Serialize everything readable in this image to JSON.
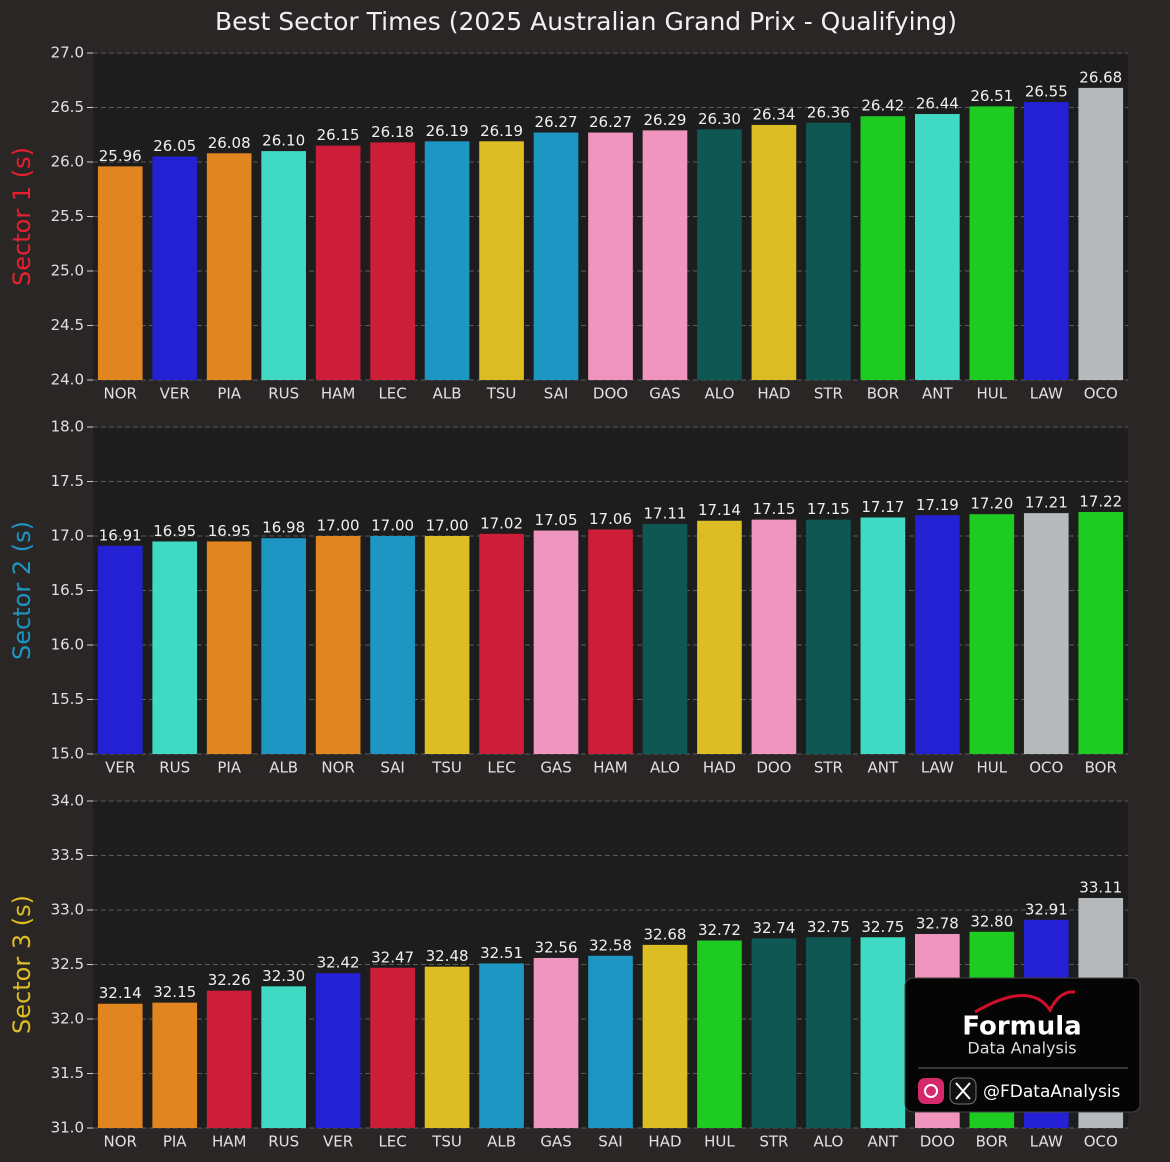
{
  "title": "Best Sector Times (2025 Australian Grand Prix - Qualifying)",
  "logo": {
    "brand": "Formula",
    "subtitle": "Data Analysis",
    "handle": "@FDataAnalysis"
  },
  "chart_data": [
    {
      "type": "bar",
      "ylabel": "Sector 1 (s)",
      "ylabel_color": "#e8202e",
      "grid": true,
      "categories": [
        "NOR",
        "VER",
        "PIA",
        "RUS",
        "HAM",
        "LEC",
        "ALB",
        "TSU",
        "SAI",
        "DOO",
        "GAS",
        "ALO",
        "HAD",
        "STR",
        "BOR",
        "ANT",
        "HUL",
        "LAW",
        "OCO"
      ],
      "values": [
        25.96,
        26.05,
        26.08,
        26.1,
        26.15,
        26.18,
        26.19,
        26.19,
        26.27,
        26.27,
        26.29,
        26.3,
        26.34,
        26.36,
        26.42,
        26.44,
        26.51,
        26.55,
        26.68
      ],
      "value_labels": [
        "25.96",
        "26.05",
        "26.08",
        "26.10",
        "26.15",
        "26.18",
        "26.19",
        "26.19",
        "26.27",
        "26.27",
        "26.29",
        "26.30",
        "26.34",
        "26.36",
        "26.42",
        "26.44",
        "26.51",
        "26.55",
        "26.68"
      ],
      "colors": [
        "#e08520",
        "#2420d4",
        "#e08520",
        "#40d9c4",
        "#cc1e38",
        "#cc1e38",
        "#1e96c3",
        "#dcbe24",
        "#1e96c3",
        "#f096be",
        "#f096be",
        "#0e5752",
        "#dcbe24",
        "#0e5752",
        "#1ecb20",
        "#40d9c4",
        "#1ecb20",
        "#2420d4",
        "#b6babd"
      ],
      "ylim": [
        24,
        27
      ],
      "yticks": [
        {
          "value": 24,
          "label": "24.0"
        },
        24.5,
        {
          "value": 25,
          "label": "25.0"
        },
        25.5,
        {
          "value": 26,
          "label": "26.0"
        },
        26.5,
        {
          "value": 27,
          "label": "27.0"
        }
      ]
    },
    {
      "type": "bar",
      "ylabel": "Sector 2 (s)",
      "ylabel_color": "#1e96c3",
      "grid": true,
      "categories": [
        "VER",
        "RUS",
        "PIA",
        "ALB",
        "NOR",
        "SAI",
        "TSU",
        "LEC",
        "GAS",
        "HAM",
        "ALO",
        "HAD",
        "DOO",
        "STR",
        "ANT",
        "LAW",
        "HUL",
        "OCO",
        "BOR"
      ],
      "values": [
        16.91,
        16.95,
        16.95,
        16.98,
        17,
        17,
        17,
        17.02,
        17.05,
        17.06,
        17.11,
        17.14,
        17.15,
        17.15,
        17.17,
        17.19,
        17.2,
        17.21,
        17.22
      ],
      "value_labels": [
        "16.91",
        "16.95",
        "16.95",
        "16.98",
        "17.00",
        "17.00",
        "17.00",
        "17.02",
        "17.05",
        "17.06",
        "17.11",
        "17.14",
        "17.15",
        "17.15",
        "17.17",
        "17.19",
        "17.20",
        "17.21",
        "17.22"
      ],
      "colors": [
        "#2420d4",
        "#40d9c4",
        "#e08520",
        "#1e96c3",
        "#e08520",
        "#1e96c3",
        "#dcbe24",
        "#cc1e38",
        "#f096be",
        "#cc1e38",
        "#0e5752",
        "#dcbe24",
        "#f096be",
        "#0e5752",
        "#40d9c4",
        "#2420d4",
        "#1ecb20",
        "#b6babd",
        "#1ecb20"
      ],
      "ylim": [
        15,
        18
      ],
      "yticks": [
        {
          "value": 15,
          "label": "15.0"
        },
        15.5,
        {
          "value": 16,
          "label": "16.0"
        },
        16.5,
        {
          "value": 17,
          "label": "17.0"
        },
        17.5,
        {
          "value": 18,
          "label": "18.0"
        }
      ]
    },
    {
      "type": "bar",
      "ylabel": "Sector 3 (s)",
      "ylabel_color": "#dcbe24",
      "grid": true,
      "categories": [
        "NOR",
        "PIA",
        "HAM",
        "RUS",
        "VER",
        "LEC",
        "TSU",
        "ALB",
        "GAS",
        "SAI",
        "HAD",
        "HUL",
        "STR",
        "ALO",
        "ANT",
        "DOO",
        "BOR",
        "LAW",
        "OCO"
      ],
      "values": [
        32.14,
        32.15,
        32.26,
        32.3,
        32.42,
        32.47,
        32.48,
        32.51,
        32.56,
        32.58,
        32.68,
        32.72,
        32.74,
        32.75,
        32.75,
        32.78,
        32.8,
        32.91,
        33.11
      ],
      "value_labels": [
        "32.14",
        "32.15",
        "32.26",
        "32.30",
        "32.42",
        "32.47",
        "32.48",
        "32.51",
        "32.56",
        "32.58",
        "32.68",
        "32.72",
        "32.74",
        "32.75",
        "32.75",
        "32.78",
        "32.80",
        "32.91",
        "33.11"
      ],
      "colors": [
        "#e08520",
        "#e08520",
        "#cc1e38",
        "#40d9c4",
        "#2420d4",
        "#cc1e38",
        "#dcbe24",
        "#1e96c3",
        "#f096be",
        "#1e96c3",
        "#dcbe24",
        "#1ecb20",
        "#0e5752",
        "#0e5752",
        "#40d9c4",
        "#f096be",
        "#1ecb20",
        "#2420d4",
        "#b6babd"
      ],
      "ylim": [
        31,
        34
      ],
      "yticks": [
        {
          "value": 31,
          "label": "31.0"
        },
        31.5,
        {
          "value": 32,
          "label": "32.0"
        },
        32.5,
        {
          "value": 33,
          "label": "33.0"
        },
        33.5,
        {
          "value": 34,
          "label": "34.0"
        }
      ]
    }
  ]
}
